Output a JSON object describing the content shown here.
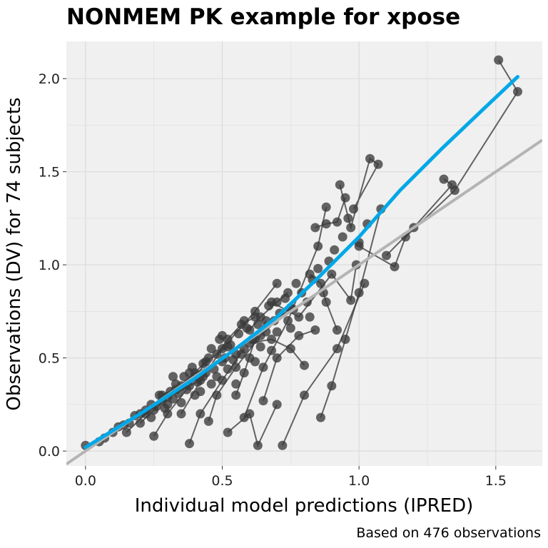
{
  "chart_data": {
    "type": "scatter",
    "title": "NONMEM PK example for xpose",
    "xlabel": "Individual model predictions (IPRED)",
    "ylabel": "Observations (DV) for 74 subjects",
    "caption": "Based on 476 observations",
    "xlim": [
      -0.07,
      1.67
    ],
    "ylim": [
      -0.08,
      2.2
    ],
    "x_ticks": [
      0.0,
      0.5,
      1.0,
      1.5
    ],
    "x_tick_labels": [
      "0.0",
      "0.5",
      "1.0",
      "1.5"
    ],
    "y_ticks": [
      0.0,
      0.5,
      1.0,
      1.5,
      2.0
    ],
    "y_tick_labels": [
      "0.0",
      "0.5",
      "1.0",
      "1.5",
      "2.0"
    ],
    "grid": true,
    "panel_background": "#f0f0f0",
    "grid_color": "#dcdcdc",
    "point_color": "#3a3a3a",
    "line_color": "#3a3a3a",
    "smooth_color": "#00a8e8",
    "identity_color": "#b4b4b4",
    "series": [
      {
        "role": "individual-profiles",
        "lines": [
          [
            [
              0.0,
              0.03
            ],
            [
              0.05,
              0.05
            ],
            [
              0.12,
              0.13
            ],
            [
              0.2,
              0.2
            ],
            [
              0.3,
              0.29
            ],
            [
              0.42,
              0.38
            ]
          ],
          [
            [
              0.52,
              0.1
            ],
            [
              0.6,
              0.2
            ],
            [
              0.63,
              0.03
            ],
            [
              0.7,
              0.25
            ]
          ],
          [
            [
              0.86,
              0.18
            ],
            [
              0.9,
              0.35
            ],
            [
              0.95,
              0.6
            ],
            [
              1.0,
              0.85
            ],
            [
              1.08,
              1.3
            ]
          ],
          [
            [
              0.72,
              0.03
            ],
            [
              0.8,
              0.3
            ],
            [
              0.92,
              0.55
            ],
            [
              1.02,
              0.9
            ]
          ],
          [
            [
              1.51,
              2.1
            ],
            [
              1.58,
              1.93
            ],
            [
              1.35,
              1.4
            ],
            [
              1.17,
              1.15
            ],
            [
              1.13,
              0.99
            ],
            [
              1.0,
              1.1
            ]
          ],
          [
            [
              1.31,
              1.46
            ],
            [
              1.34,
              1.43
            ],
            [
              1.2,
              1.2
            ],
            [
              1.1,
              1.05
            ]
          ],
          [
            [
              0.93,
              1.43
            ],
            [
              0.97,
              1.2
            ],
            [
              1.04,
              1.57
            ],
            [
              1.07,
              1.54
            ],
            [
              0.98,
              1.3
            ]
          ],
          [
            [
              0.58,
              0.18
            ],
            [
              0.65,
              0.45
            ],
            [
              0.74,
              0.7
            ],
            [
              0.85,
              1.1
            ],
            [
              0.88,
              1.31
            ]
          ],
          [
            [
              0.68,
              0.8
            ],
            [
              0.78,
              0.72
            ],
            [
              0.9,
              0.95
            ],
            [
              0.97,
              0.81
            ],
            [
              0.99,
              1.0
            ]
          ],
          [
            [
              0.35,
              0.2
            ],
            [
              0.43,
              0.4
            ],
            [
              0.5,
              0.55
            ],
            [
              0.62,
              0.75
            ],
            [
              0.7,
              0.9
            ]
          ],
          [
            [
              0.25,
              0.08
            ],
            [
              0.3,
              0.2
            ],
            [
              0.38,
              0.35
            ],
            [
              0.45,
              0.5
            ]
          ],
          [
            [
              0.15,
              0.1
            ],
            [
              0.22,
              0.2
            ],
            [
              0.28,
              0.27
            ],
            [
              0.4,
              0.42
            ],
            [
              0.5,
              0.48
            ]
          ],
          [
            [
              0.45,
              0.16
            ],
            [
              0.48,
              0.3
            ],
            [
              0.55,
              0.45
            ],
            [
              0.64,
              0.62
            ],
            [
              0.75,
              0.77
            ]
          ],
          [
            [
              0.38,
              0.04
            ],
            [
              0.42,
              0.2
            ],
            [
              0.5,
              0.38
            ],
            [
              0.58,
              0.55
            ]
          ],
          [
            [
              0.84,
              1.2
            ],
            [
              0.88,
              1.22
            ],
            [
              0.92,
              1.23
            ],
            [
              0.95,
              1.36
            ]
          ],
          [
            [
              0.8,
              0.46
            ],
            [
              0.75,
              0.55
            ],
            [
              0.68,
              0.6
            ],
            [
              0.6,
              0.58
            ]
          ],
          [
            [
              0.65,
              0.27
            ],
            [
              0.7,
              0.5
            ],
            [
              0.78,
              0.62
            ],
            [
              0.84,
              0.65
            ]
          ],
          [
            [
              0.55,
              0.3
            ],
            [
              0.58,
              0.42
            ],
            [
              0.62,
              0.6
            ],
            [
              0.66,
              0.7
            ]
          ],
          [
            [
              0.92,
              0.65
            ],
            [
              0.88,
              0.8
            ],
            [
              0.86,
              0.9
            ],
            [
              0.82,
              0.95
            ]
          ],
          [
            [
              0.28,
              0.3
            ],
            [
              0.35,
              0.35
            ],
            [
              0.44,
              0.48
            ],
            [
              0.52,
              0.56
            ]
          ],
          [
            [
              0.2,
              0.15
            ],
            [
              0.25,
              0.22
            ],
            [
              0.33,
              0.33
            ],
            [
              0.4,
              0.4
            ]
          ],
          [
            [
              0.6,
              0.65
            ],
            [
              0.64,
              0.72
            ],
            [
              0.7,
              0.8
            ],
            [
              0.74,
              0.85
            ]
          ],
          [
            [
              0.48,
              0.52
            ],
            [
              0.52,
              0.6
            ],
            [
              0.57,
              0.68
            ],
            [
              0.62,
              0.72
            ]
          ]
        ]
      },
      {
        "role": "extra-observations",
        "points": [
          [
            0.07,
            0.07
          ],
          [
            0.1,
            0.1
          ],
          [
            0.14,
            0.14
          ],
          [
            0.16,
            0.15
          ],
          [
            0.18,
            0.19
          ],
          [
            0.22,
            0.22
          ],
          [
            0.24,
            0.25
          ],
          [
            0.26,
            0.24
          ],
          [
            0.27,
            0.3
          ],
          [
            0.31,
            0.32
          ],
          [
            0.32,
            0.28
          ],
          [
            0.33,
            0.36
          ],
          [
            0.34,
            0.31
          ],
          [
            0.36,
            0.4
          ],
          [
            0.37,
            0.33
          ],
          [
            0.39,
            0.45
          ],
          [
            0.41,
            0.37
          ],
          [
            0.43,
            0.47
          ],
          [
            0.44,
            0.42
          ],
          [
            0.46,
            0.55
          ],
          [
            0.47,
            0.44
          ],
          [
            0.49,
            0.6
          ],
          [
            0.51,
            0.5
          ],
          [
            0.53,
            0.57
          ],
          [
            0.54,
            0.49
          ],
          [
            0.56,
            0.63
          ],
          [
            0.57,
            0.52
          ],
          [
            0.59,
            0.66
          ],
          [
            0.61,
            0.6
          ],
          [
            0.63,
            0.68
          ],
          [
            0.66,
            0.64
          ],
          [
            0.67,
            0.78
          ],
          [
            0.69,
            0.7
          ],
          [
            0.71,
            0.74
          ],
          [
            0.73,
            0.82
          ],
          [
            0.76,
            0.76
          ],
          [
            0.77,
            0.9
          ],
          [
            0.79,
            0.85
          ],
          [
            0.81,
            0.8
          ],
          [
            0.83,
            0.92
          ],
          [
            0.85,
            0.98
          ],
          [
            0.87,
            0.85
          ],
          [
            0.89,
            1.02
          ],
          [
            0.91,
            1.08
          ],
          [
            0.94,
            1.15
          ],
          [
            0.96,
            1.25
          ],
          [
            1.0,
            1.12
          ],
          [
            1.03,
            1.22
          ],
          [
            0.3,
            0.25
          ],
          [
            0.35,
            0.26
          ],
          [
            0.42,
            0.32
          ],
          [
            0.48,
            0.4
          ],
          [
            0.55,
            0.52
          ],
          [
            0.6,
            0.5
          ],
          [
            0.32,
            0.4
          ],
          [
            0.38,
            0.42
          ],
          [
            0.5,
            0.62
          ],
          [
            0.58,
            0.7
          ],
          [
            0.4,
            0.3
          ],
          [
            0.46,
            0.36
          ],
          [
            0.52,
            0.44
          ],
          [
            0.64,
            0.56
          ],
          [
            0.7,
            0.64
          ],
          [
            0.55,
            0.36
          ],
          [
            0.62,
            0.48
          ],
          [
            0.68,
            0.54
          ],
          [
            0.75,
            0.66
          ],
          [
            0.82,
            0.72
          ],
          [
            0.24,
            0.18
          ],
          [
            0.29,
            0.23
          ]
        ]
      },
      {
        "role": "loess-smooth",
        "points": [
          [
            0.0,
            0.02
          ],
          [
            0.2,
            0.2
          ],
          [
            0.4,
            0.39
          ],
          [
            0.55,
            0.55
          ],
          [
            0.7,
            0.72
          ],
          [
            0.85,
            0.93
          ],
          [
            1.0,
            1.15
          ],
          [
            1.15,
            1.4
          ],
          [
            1.3,
            1.62
          ],
          [
            1.45,
            1.83
          ],
          [
            1.58,
            2.01
          ]
        ]
      },
      {
        "role": "identity-line",
        "points": [
          [
            -0.07,
            -0.07
          ],
          [
            1.67,
            1.67
          ]
        ]
      }
    ]
  }
}
